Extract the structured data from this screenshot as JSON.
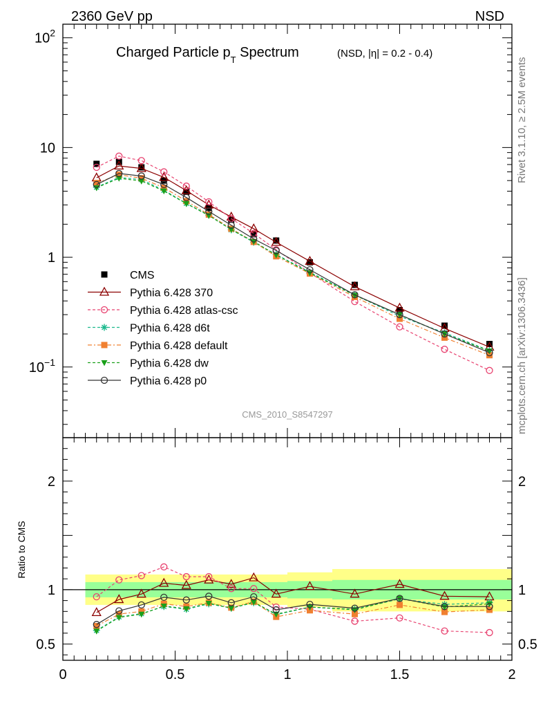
{
  "header": {
    "energy_label": "2360 GeV pp",
    "process_label": "NSD"
  },
  "side_labels": {
    "rivet": "Rivet 3.1.10, ≥ 2.5M events",
    "mcplots": "mcplots.cern.ch [arXiv:1306.3436]"
  },
  "chart_data": [
    {
      "type": "scatter",
      "title_main": "Charged Particle p",
      "title_sub": "T",
      "title_tail": " Spectrum",
      "title_note": "(NSD, |η| = 0.2 - 0.4)",
      "watermark": "CMS_2010_S8547297",
      "xlabel": "",
      "ylabel": "",
      "xlim": [
        0,
        2
      ],
      "ylim": [
        0.0227,
        133
      ],
      "log_y": true,
      "x_tick_labels": [
        "0",
        "0.5",
        "1",
        "1.5",
        "2"
      ],
      "y_tick_labels": [
        {
          "value": 100,
          "base": "10",
          "exp": "2"
        },
        {
          "value": 10,
          "base": "10",
          "exp": ""
        },
        {
          "value": 1,
          "base": "1",
          "exp": ""
        },
        {
          "value": 0.1,
          "base": "10",
          "exp": "−1"
        }
      ],
      "legend_position": "left, below curves",
      "x": [
        0.15,
        0.25,
        0.35,
        0.45,
        0.55,
        0.65,
        0.75,
        0.85,
        0.95,
        1.1,
        1.3,
        1.5,
        1.7,
        1.9
      ],
      "series": [
        {
          "name": "CMS",
          "style": "data",
          "color": "#000000",
          "marker": "square-filled",
          "values": [
            7.1,
            7.4,
            6.6,
            5.0,
            3.95,
            2.82,
            2.2,
            1.62,
            1.42,
            0.9,
            0.56,
            0.33,
            0.238,
            0.162
          ]
        },
        {
          "name": "Pythia 6.428 370",
          "style": "solid",
          "color": "#8b0000",
          "marker": "triangle-open",
          "values": [
            5.3,
            6.8,
            6.45,
            5.35,
            4.05,
            3.0,
            2.33,
            1.82,
            1.37,
            0.92,
            0.54,
            0.345,
            0.225,
            0.152
          ]
        },
        {
          "name": "Pythia 6.428 atlas-csc",
          "style": "dashed",
          "color": "#e8416f",
          "marker": "circle-open",
          "values": [
            6.6,
            8.35,
            7.6,
            6.0,
            4.45,
            3.2,
            2.25,
            1.65,
            1.17,
            0.72,
            0.395,
            0.232,
            0.145,
            0.093
          ]
        },
        {
          "name": "Pythia 6.428 d6t",
          "style": "dashed",
          "color": "#1ab88c",
          "marker": "star",
          "values": [
            4.35,
            5.35,
            5.1,
            4.08,
            3.1,
            2.42,
            1.78,
            1.37,
            1.06,
            0.73,
            0.455,
            0.29,
            0.205,
            0.141
          ]
        },
        {
          "name": "Pythia 6.428 default",
          "style": "dashdot",
          "color": "#f08030",
          "marker": "square-filled",
          "values": [
            4.75,
            5.65,
            5.25,
            4.3,
            3.25,
            2.45,
            1.82,
            1.38,
            1.02,
            0.71,
            0.435,
            0.275,
            0.185,
            0.128
          ]
        },
        {
          "name": "Pythia 6.428 dw",
          "style": "dashed",
          "color": "#1aa01a",
          "marker": "triangle-down-filled",
          "values": [
            4.3,
            5.25,
            4.95,
            4.02,
            3.08,
            2.4,
            1.79,
            1.39,
            1.05,
            0.72,
            0.45,
            0.3,
            0.2,
            0.14
          ]
        },
        {
          "name": "Pythia 6.428 p0",
          "style": "solid",
          "color": "#333333",
          "marker": "circle-open",
          "values": [
            4.6,
            5.8,
            5.5,
            4.6,
            3.5,
            2.62,
            1.96,
            1.47,
            1.15,
            0.77,
            0.455,
            0.3,
            0.2,
            0.135
          ]
        }
      ]
    },
    {
      "type": "scatter",
      "title": "",
      "xlabel": "",
      "ylabel": "Ratio to CMS",
      "xlim": [
        0,
        2
      ],
      "ylim": [
        0.35,
        2.4
      ],
      "y_tick_labels": [
        "0.5",
        "1",
        "2"
      ],
      "y_tick_values": [
        0.5,
        1,
        2
      ],
      "reference_line": 1,
      "bands": {
        "bin_edges": [
          0.1,
          0.2,
          0.3,
          0.4,
          0.5,
          0.6,
          0.7,
          0.8,
          0.9,
          1.0,
          1.2,
          1.4,
          1.6,
          1.8,
          2.0
        ],
        "green_low": [
          0.93,
          0.93,
          0.93,
          0.93,
          0.93,
          0.93,
          0.93,
          0.93,
          0.93,
          0.92,
          0.91,
          0.91,
          0.91,
          0.91
        ],
        "green_high": [
          1.07,
          1.07,
          1.07,
          1.07,
          1.07,
          1.07,
          1.07,
          1.07,
          1.07,
          1.08,
          1.09,
          1.09,
          1.09,
          1.09
        ],
        "yellow_low": [
          0.86,
          0.86,
          0.86,
          0.86,
          0.86,
          0.86,
          0.86,
          0.86,
          0.86,
          0.84,
          0.8,
          0.8,
          0.8,
          0.8
        ],
        "yellow_high": [
          1.14,
          1.14,
          1.14,
          1.14,
          1.14,
          1.14,
          1.14,
          1.14,
          1.14,
          1.16,
          1.19,
          1.19,
          1.19,
          1.19
        ]
      },
      "x": [
        0.15,
        0.25,
        0.35,
        0.45,
        0.55,
        0.65,
        0.75,
        0.85,
        0.95,
        1.1,
        1.3,
        1.5,
        1.7,
        1.9
      ],
      "series": [
        {
          "name": "Pythia 6.428 370",
          "style": "solid",
          "color": "#8b0000",
          "marker": "triangle-open",
          "values": [
            0.79,
            0.91,
            0.96,
            1.06,
            1.04,
            1.09,
            1.05,
            1.11,
            0.96,
            1.03,
            0.96,
            1.05,
            0.94,
            0.935
          ]
        },
        {
          "name": "Pythia 6.428 atlas-csc",
          "style": "dashed",
          "color": "#e8416f",
          "marker": "circle-open",
          "values": [
            0.935,
            1.09,
            1.13,
            1.21,
            1.12,
            1.12,
            1.01,
            1.01,
            0.84,
            0.82,
            0.71,
            0.74,
            0.62,
            0.605
          ]
        },
        {
          "name": "Pythia 6.428 d6t",
          "style": "dashed",
          "color": "#1ab88c",
          "marker": "star",
          "values": [
            0.625,
            0.75,
            0.78,
            0.845,
            0.82,
            0.87,
            0.83,
            0.88,
            0.77,
            0.84,
            0.82,
            0.915,
            0.865,
            0.88
          ]
        },
        {
          "name": "Pythia 6.428 default",
          "style": "dashdot",
          "color": "#f08030",
          "marker": "square-filled",
          "values": [
            0.665,
            0.775,
            0.8,
            0.87,
            0.845,
            0.88,
            0.835,
            0.89,
            0.75,
            0.81,
            0.775,
            0.86,
            0.795,
            0.815
          ]
        },
        {
          "name": "Pythia 6.428 dw",
          "style": "dashed",
          "color": "#1aa01a",
          "marker": "triangle-down-filled",
          "values": [
            0.62,
            0.745,
            0.775,
            0.85,
            0.825,
            0.875,
            0.83,
            0.885,
            0.775,
            0.84,
            0.815,
            0.92,
            0.84,
            0.87
          ]
        },
        {
          "name": "Pythia 6.428 p0",
          "style": "solid",
          "color": "#333333",
          "marker": "circle-open",
          "values": [
            0.68,
            0.805,
            0.86,
            0.93,
            0.905,
            0.94,
            0.88,
            0.935,
            0.815,
            0.865,
            0.83,
            0.92,
            0.845,
            0.845
          ]
        }
      ]
    }
  ]
}
